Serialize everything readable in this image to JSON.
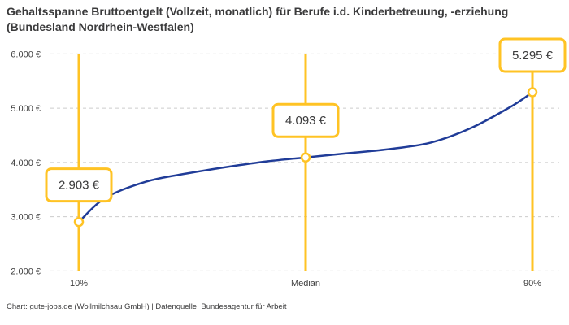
{
  "header": {
    "title": "Gehaltsspanne Bruttoentgelt (Vollzeit, monatlich) für Berufe i.d. Kinderbetreuung, -erziehung (Bundesland Nordrhein-Westfalen)"
  },
  "footer": {
    "source": "Chart: gute-jobs.de (Wollmilchsau GmbH) | Datenquelle: Bundesagentur für Arbeit"
  },
  "colors": {
    "accent_yellow": "#FFC324",
    "line_blue": "#203C98",
    "grid_gray": "#CCCCCC",
    "text_dark": "#3B3B3C",
    "tick_text": "#3F3F3F",
    "box_fill": "#FFFFFF"
  },
  "chart_data": {
    "type": "line",
    "title": "Gehaltsspanne Bruttoentgelt (Vollzeit, monatlich) für Berufe i.d. Kinderbetreuung, -erziehung (Bundesland Nordrhein-Westfalen)",
    "xlabel": "",
    "ylabel": "",
    "ylim": [
      2000,
      6000
    ],
    "xlim_percentile": [
      5,
      95
    ],
    "grid": true,
    "legend": false,
    "gridline_style": "dashed",
    "y_ticks": [
      {
        "value": 2000,
        "label": "2.000 €"
      },
      {
        "value": 3000,
        "label": "3.000 €"
      },
      {
        "value": 4000,
        "label": "4.000 €"
      },
      {
        "value": 5000,
        "label": "5.000 €"
      },
      {
        "value": 6000,
        "label": "6.000 €"
      }
    ],
    "key_points": [
      {
        "x_label": "10%",
        "percentile": 10,
        "value": 2903,
        "value_label": "2.903 €"
      },
      {
        "x_label": "Median",
        "percentile": 50,
        "value": 4093,
        "value_label": "4.093 €"
      },
      {
        "x_label": "90%",
        "percentile": 90,
        "value": 5295,
        "value_label": "5.295 €"
      }
    ],
    "curve_percentile_value": [
      [
        10,
        2903
      ],
      [
        14.7,
        3348
      ],
      [
        21.9,
        3648
      ],
      [
        29.1,
        3798
      ],
      [
        36.2,
        3918
      ],
      [
        43.4,
        4022
      ],
      [
        50,
        4093
      ],
      [
        57.7,
        4172
      ],
      [
        64.9,
        4247
      ],
      [
        72.1,
        4367
      ],
      [
        79.2,
        4637
      ],
      [
        86.4,
        5041
      ],
      [
        90,
        5295
      ]
    ]
  }
}
